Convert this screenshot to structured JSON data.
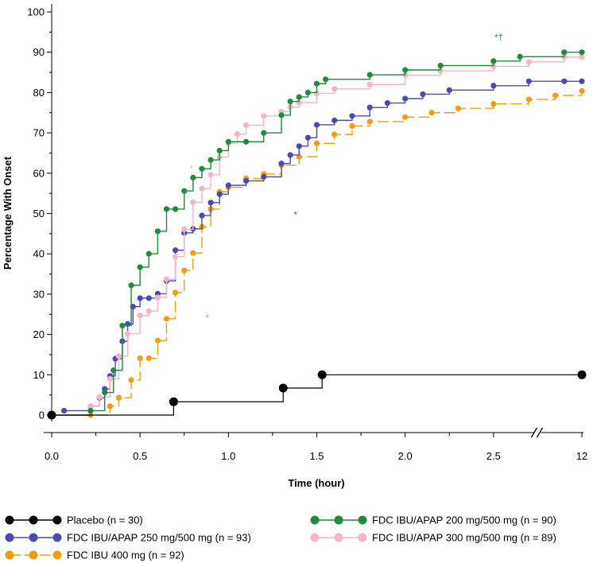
{
  "chart_data": {
    "type": "line",
    "step": true,
    "title": "",
    "xlabel": "Time (hour)",
    "ylabel": "Percentage With Onset",
    "xlim": [
      0,
      3.0
    ],
    "ylim": [
      0,
      100
    ],
    "axis_break": {
      "after": 2.75,
      "label_positions": [
        0.0,
        0.5,
        1.0,
        1.5,
        2.0,
        2.5,
        3.0
      ]
    },
    "x_ticks": [
      "0.0",
      "0.5",
      "1.0",
      "1.5",
      "2.0",
      "2.5",
      "12"
    ],
    "y_ticks": [
      "0",
      "10",
      "20",
      "30",
      "40",
      "50",
      "60",
      "70",
      "80",
      "90",
      "100"
    ],
    "grid": false,
    "legend_position": "bottom",
    "series": [
      {
        "name": "Placebo (n = 30)",
        "color": "#000000",
        "x": [
          0.0,
          0.69,
          1.31,
          1.53,
          3.0
        ],
        "y": [
          0,
          3.3,
          6.7,
          10.0,
          10.0
        ]
      },
      {
        "name": "FDC IBU/APAP 250 mg/500 mg (n = 93)",
        "color": "#4B4BAF",
        "x": [
          0.07,
          0.22,
          0.27,
          0.3,
          0.33,
          0.36,
          0.4,
          0.43,
          0.46,
          0.5,
          0.55,
          0.6,
          0.65,
          0.7,
          0.75,
          0.8,
          0.85,
          0.9,
          0.95,
          1.0,
          1.1,
          1.2,
          1.3,
          1.35,
          1.4,
          1.45,
          1.5,
          1.6,
          1.7,
          1.8,
          1.9,
          2.0,
          2.1,
          2.25,
          2.5,
          2.7,
          2.9,
          3.0
        ],
        "y": [
          1.1,
          2.2,
          4.3,
          6.5,
          9.7,
          14.0,
          18.3,
          22.6,
          26.9,
          29.0,
          29.0,
          30.1,
          33.3,
          40.9,
          45.2,
          46.2,
          49.5,
          52.7,
          54.8,
          57.0,
          58.1,
          59.1,
          62.4,
          64.5,
          66.7,
          68.8,
          72.0,
          73.1,
          74.2,
          76.3,
          77.4,
          78.5,
          79.6,
          80.6,
          81.7,
          82.8,
          82.8,
          82.8
        ]
      },
      {
        "name": "FDC IBU 400 mg (n = 92)",
        "color": "#F39C12",
        "x": [
          0.0,
          0.22,
          0.33,
          0.38,
          0.45,
          0.5,
          0.55,
          0.6,
          0.65,
          0.7,
          0.75,
          0.8,
          0.85,
          0.9,
          0.95,
          1.0,
          1.1,
          1.2,
          1.3,
          1.4,
          1.5,
          1.6,
          1.7,
          1.8,
          2.0,
          2.15,
          2.3,
          2.5,
          2.7,
          2.85,
          3.0
        ],
        "y": [
          0,
          0,
          2.2,
          4.3,
          8.7,
          14.1,
          14.1,
          18.5,
          23.9,
          30.4,
          35.9,
          40.2,
          46.7,
          51.1,
          55.4,
          56.5,
          58.7,
          59.8,
          62.0,
          64.1,
          67.4,
          69.6,
          71.7,
          72.8,
          73.9,
          75.0,
          76.1,
          77.2,
          78.3,
          79.3,
          80.4
        ]
      },
      {
        "name": "FDC IBU/APAP 200 mg/500 mg (n = 90)",
        "color": "#1E8C3C",
        "x": [
          0.0,
          0.22,
          0.3,
          0.35,
          0.4,
          0.45,
          0.5,
          0.55,
          0.6,
          0.65,
          0.7,
          0.75,
          0.8,
          0.85,
          0.9,
          0.95,
          1.0,
          1.1,
          1.2,
          1.3,
          1.35,
          1.4,
          1.45,
          1.5,
          1.55,
          1.8,
          2.0,
          2.2,
          2.5,
          2.65,
          2.9,
          3.0
        ],
        "y": [
          0,
          1.1,
          5.6,
          11.1,
          22.2,
          32.2,
          36.7,
          40.0,
          45.6,
          51.1,
          51.1,
          55.6,
          58.9,
          61.1,
          63.3,
          65.6,
          67.8,
          67.8,
          70.0,
          74.4,
          77.8,
          78.9,
          80.0,
          82.2,
          83.3,
          84.4,
          85.6,
          86.7,
          87.8,
          88.9,
          90.0,
          90.0
        ]
      },
      {
        "name": "FDC IBU/APAP 300 mg/500 mg (n = 89)",
        "color": "#F4B6C2",
        "x": [
          0.0,
          0.22,
          0.27,
          0.33,
          0.38,
          0.43,
          0.5,
          0.55,
          0.6,
          0.65,
          0.7,
          0.75,
          0.8,
          0.85,
          0.9,
          0.95,
          1.0,
          1.05,
          1.1,
          1.2,
          1.3,
          1.35,
          1.4,
          1.5,
          1.6,
          1.8,
          2.0,
          2.2,
          2.5,
          2.7,
          2.9,
          3.0
        ],
        "y": [
          0,
          2.2,
          4.5,
          9.0,
          14.6,
          20.2,
          24.7,
          25.8,
          29.2,
          33.7,
          39.3,
          46.1,
          52.8,
          56.2,
          59.6,
          64.0,
          67.4,
          69.7,
          71.9,
          74.2,
          75.3,
          76.4,
          77.5,
          79.8,
          80.9,
          82.0,
          84.3,
          85.4,
          86.5,
          87.6,
          88.8,
          88.8
        ]
      }
    ],
    "annotations": [
      {
        "text": "*†",
        "color": "#1E8C3C",
        "x": 2.53,
        "y": 93.0
      },
      {
        "text": "*",
        "color": "#F4B6C2",
        "x": 0.79,
        "y": 60.5
      },
      {
        "text": "*",
        "color": "#4B4BAF",
        "x": 1.38,
        "y": 49.0
      },
      {
        "text": "*",
        "color": "#F39C12",
        "x": 0.88,
        "y": 23.5
      }
    ]
  }
}
